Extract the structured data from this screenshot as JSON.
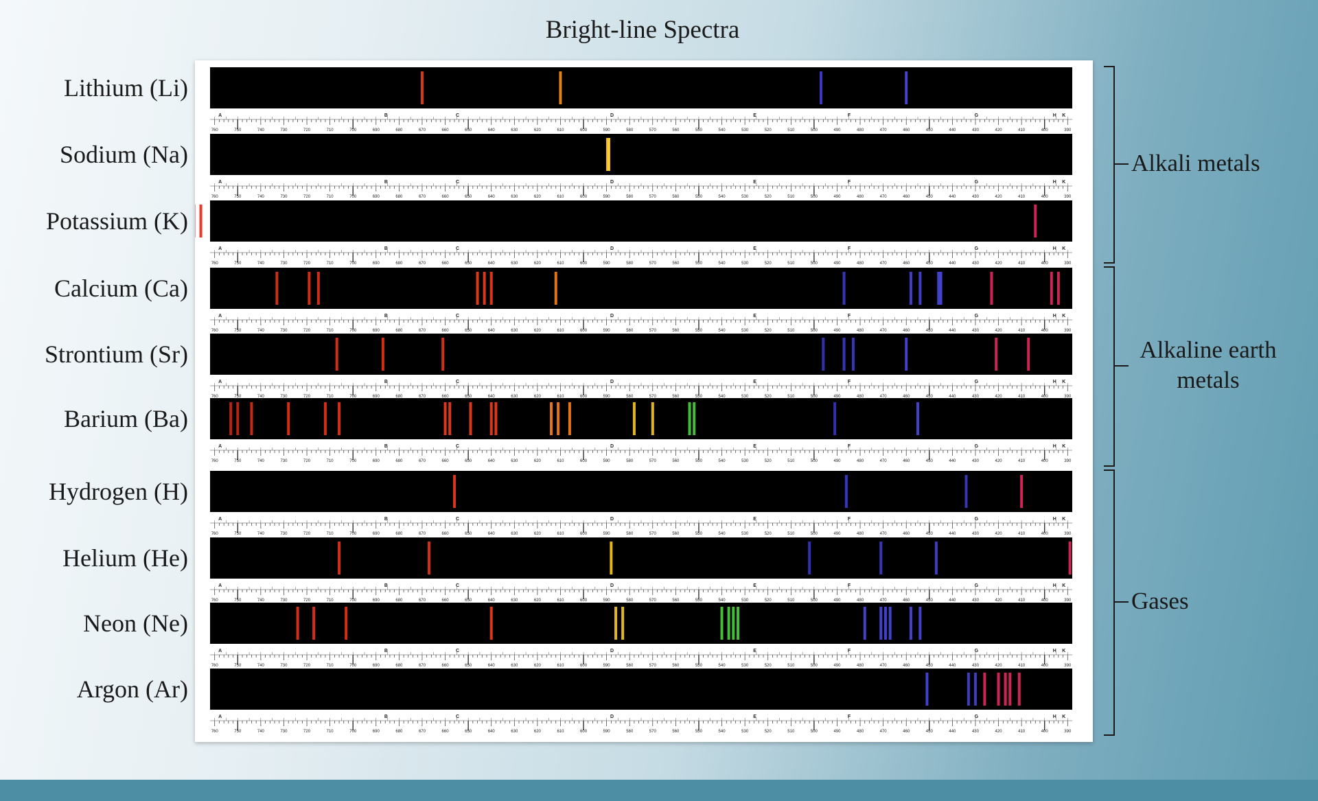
{
  "title": "Bright-line Spectra",
  "scale_ticks_nm": [
    760,
    750,
    740,
    730,
    720,
    710,
    700,
    690,
    680,
    670,
    660,
    650,
    640,
    630,
    620,
    610,
    600,
    590,
    580,
    570,
    560,
    550,
    540,
    530,
    520,
    510,
    500,
    490,
    480,
    470,
    460,
    450,
    440,
    430,
    420,
    410,
    400,
    390
  ],
  "fraunhofer_letters": [
    "A",
    "B",
    "C",
    "D",
    "E",
    "F",
    "G",
    "H",
    "K"
  ],
  "elements": [
    {
      "name": "Lithium (Li)",
      "lines": [
        {
          "nm": 670,
          "color": "#e23a1c"
        },
        {
          "nm": 610,
          "color": "#f08a1a"
        },
        {
          "nm": 497,
          "color": "#3c3ccc"
        },
        {
          "nm": 460,
          "color": "#4848d8"
        }
      ]
    },
    {
      "name": "Sodium (Na)",
      "lines": [
        {
          "nm": 589.6,
          "color": "#ffc020"
        },
        {
          "nm": 589,
          "color": "#ffd030"
        }
      ]
    },
    {
      "name": "Potassium (K)",
      "lines": [
        {
          "nm": 769,
          "color": "#e0301c"
        },
        {
          "nm": 766,
          "color": "#e0301c"
        },
        {
          "nm": 404,
          "color": "#d8285a"
        }
      ]
    },
    {
      "name": "Calcium (Ca)",
      "lines": [
        {
          "nm": 733,
          "color": "#d83018"
        },
        {
          "nm": 719,
          "color": "#d83018"
        },
        {
          "nm": 715,
          "color": "#d83018"
        },
        {
          "nm": 646,
          "color": "#e83a1c"
        },
        {
          "nm": 643,
          "color": "#e83a1c"
        },
        {
          "nm": 640,
          "color": "#e83a1c"
        },
        {
          "nm": 612,
          "color": "#f07a18"
        },
        {
          "nm": 487,
          "color": "#3838c0"
        },
        {
          "nm": 458,
          "color": "#4040d0"
        },
        {
          "nm": 454,
          "color": "#4040d0"
        },
        {
          "nm": 446,
          "color": "#4444d4"
        },
        {
          "nm": 445,
          "color": "#4444d4"
        },
        {
          "nm": 423,
          "color": "#d82858"
        },
        {
          "nm": 397,
          "color": "#d82858"
        },
        {
          "nm": 394,
          "color": "#d82858"
        }
      ]
    },
    {
      "name": "Strontium (Sr)",
      "lines": [
        {
          "nm": 707,
          "color": "#e03018"
        },
        {
          "nm": 687,
          "color": "#e03018"
        },
        {
          "nm": 661,
          "color": "#e03018"
        },
        {
          "nm": 496,
          "color": "#3434b8"
        },
        {
          "nm": 487,
          "color": "#3838c0"
        },
        {
          "nm": 483,
          "color": "#3838c0"
        },
        {
          "nm": 460,
          "color": "#4444d4"
        },
        {
          "nm": 421,
          "color": "#d82858"
        },
        {
          "nm": 407,
          "color": "#d82858"
        }
      ]
    },
    {
      "name": "Barium (Ba)",
      "lines": [
        {
          "nm": 753,
          "color": "#c02818"
        },
        {
          "nm": 750,
          "color": "#c02818"
        },
        {
          "nm": 744,
          "color": "#d02c18"
        },
        {
          "nm": 728,
          "color": "#e03018"
        },
        {
          "nm": 712,
          "color": "#e03018"
        },
        {
          "nm": 706,
          "color": "#e03018"
        },
        {
          "nm": 660,
          "color": "#e83a1c"
        },
        {
          "nm": 658,
          "color": "#e83a1c"
        },
        {
          "nm": 649,
          "color": "#e83a1c"
        },
        {
          "nm": 640,
          "color": "#e83a1c"
        },
        {
          "nm": 638,
          "color": "#e83a1c"
        },
        {
          "nm": 614,
          "color": "#f07a18"
        },
        {
          "nm": 611,
          "color": "#f07a18"
        },
        {
          "nm": 606,
          "color": "#f07a18"
        },
        {
          "nm": 578,
          "color": "#f0c020"
        },
        {
          "nm": 570,
          "color": "#f0c020"
        },
        {
          "nm": 554,
          "color": "#48c838"
        },
        {
          "nm": 552,
          "color": "#48c838"
        },
        {
          "nm": 491,
          "color": "#3434b8"
        },
        {
          "nm": 455,
          "color": "#4444d4"
        }
      ]
    },
    {
      "name": "Hydrogen (H)",
      "lines": [
        {
          "nm": 656,
          "color": "#e83a1c"
        },
        {
          "nm": 486,
          "color": "#3838c8"
        },
        {
          "nm": 434,
          "color": "#3838c0"
        },
        {
          "nm": 410,
          "color": "#d82858"
        }
      ]
    },
    {
      "name": "Helium (He)",
      "lines": [
        {
          "nm": 706,
          "color": "#e03018"
        },
        {
          "nm": 667,
          "color": "#e03018"
        },
        {
          "nm": 588,
          "color": "#f0c020"
        },
        {
          "nm": 502,
          "color": "#3434b8"
        },
        {
          "nm": 471,
          "color": "#3838c0"
        },
        {
          "nm": 447,
          "color": "#4040c8"
        },
        {
          "nm": 389,
          "color": "#d82858"
        }
      ]
    },
    {
      "name": "Neon (Ne)",
      "lines": [
        {
          "nm": 724,
          "color": "#e03018"
        },
        {
          "nm": 717,
          "color": "#e03018"
        },
        {
          "nm": 703,
          "color": "#e03018"
        },
        {
          "nm": 640,
          "color": "#e83a1c"
        },
        {
          "nm": 586,
          "color": "#f0c020"
        },
        {
          "nm": 583,
          "color": "#f0c020"
        },
        {
          "nm": 540,
          "color": "#48c838"
        },
        {
          "nm": 537,
          "color": "#48c838"
        },
        {
          "nm": 535,
          "color": "#48c838"
        },
        {
          "nm": 533,
          "color": "#48c838"
        },
        {
          "nm": 478,
          "color": "#4444d4"
        },
        {
          "nm": 471,
          "color": "#4444d4"
        },
        {
          "nm": 469,
          "color": "#4444d4"
        },
        {
          "nm": 467,
          "color": "#4444d4"
        },
        {
          "nm": 458,
          "color": "#4444d4"
        },
        {
          "nm": 454,
          "color": "#4444d4"
        }
      ]
    },
    {
      "name": "Argon (Ar)",
      "lines": [
        {
          "nm": 451,
          "color": "#4444d4"
        },
        {
          "nm": 433,
          "color": "#4040c8"
        },
        {
          "nm": 430,
          "color": "#4040c8"
        },
        {
          "nm": 426,
          "color": "#d82858"
        },
        {
          "nm": 420,
          "color": "#d82858"
        },
        {
          "nm": 417,
          "color": "#d82858"
        },
        {
          "nm": 415,
          "color": "#d82858"
        },
        {
          "nm": 411,
          "color": "#d82858"
        }
      ]
    }
  ],
  "groups": [
    {
      "label": [
        "Alkali metals"
      ]
    },
    {
      "label": [
        "Alkaline earth",
        "metals"
      ]
    },
    {
      "label": [
        "Gases"
      ]
    }
  ],
  "colors": {
    "background_band": "#000000",
    "scale_bg": "#ffffff",
    "footer": "#4e8ea4"
  }
}
